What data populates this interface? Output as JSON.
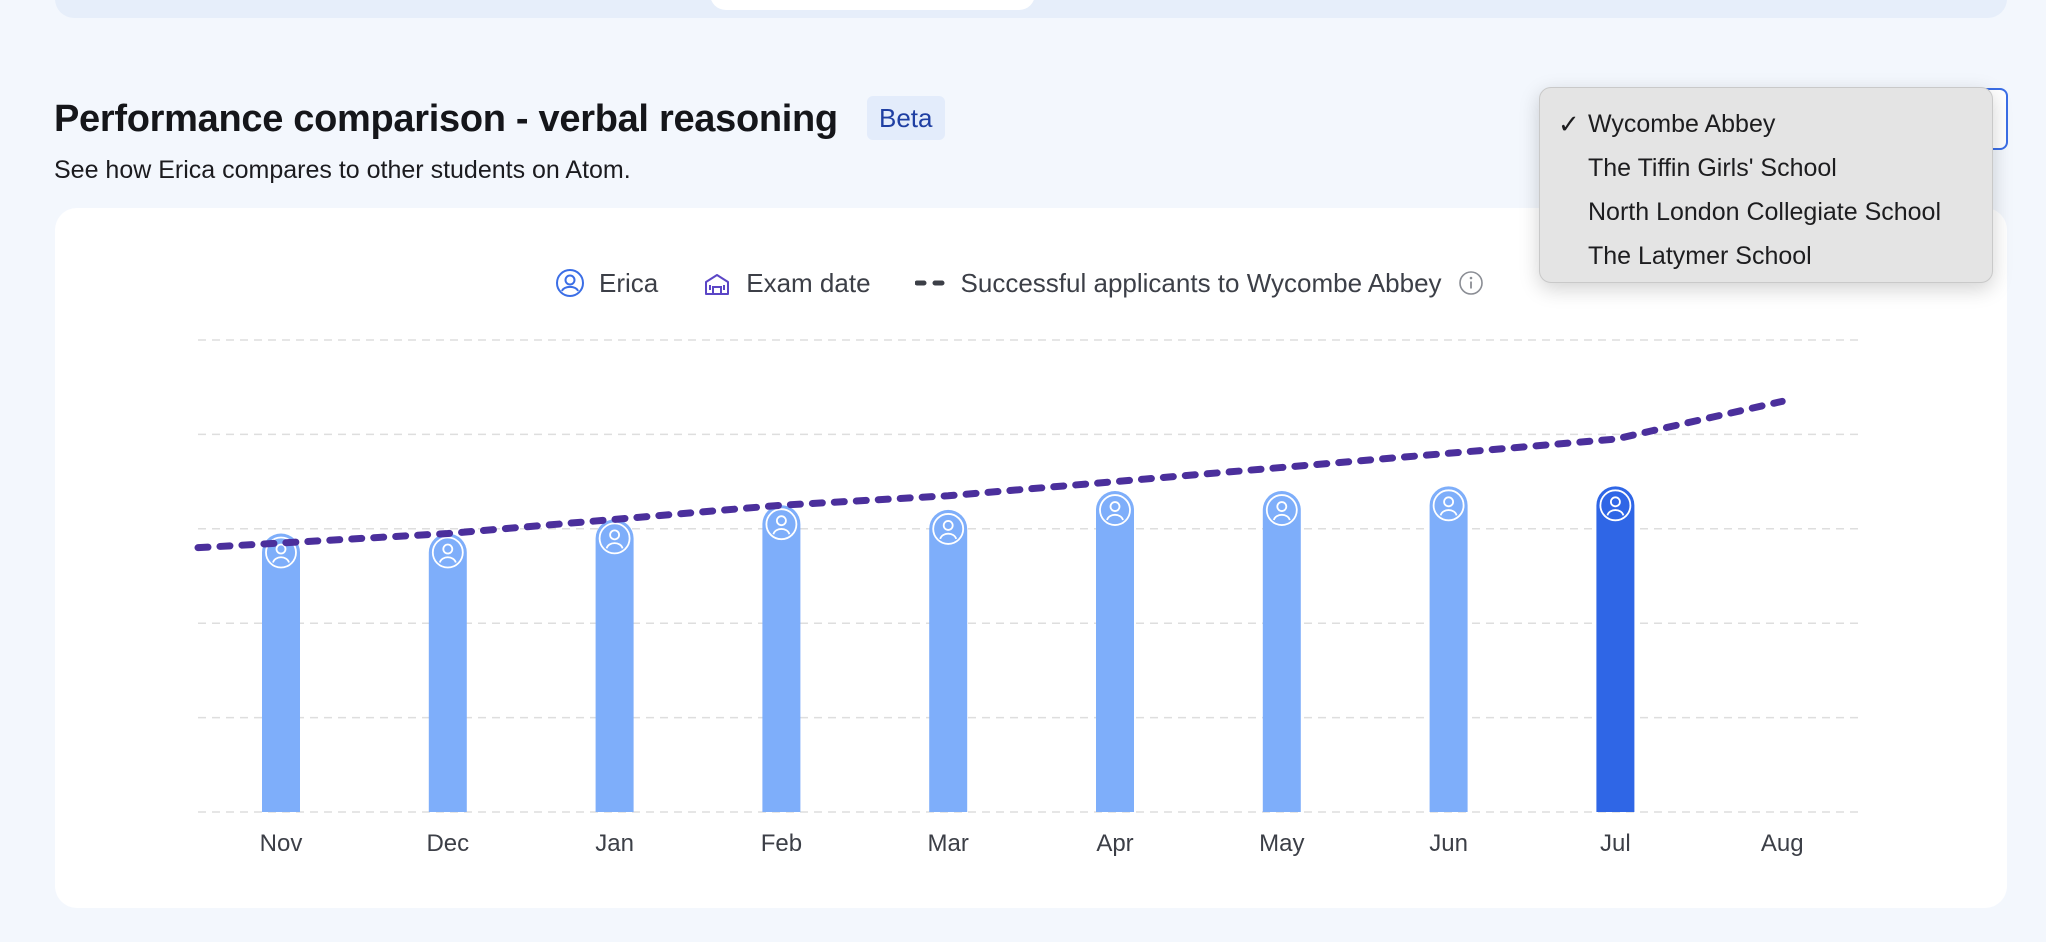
{
  "header": {
    "title": "Performance comparison - verbal reasoning",
    "badge": "Beta",
    "subtitle": "See how Erica compares to other students on Atom."
  },
  "legend": {
    "student": "Erica",
    "exam_date": "Exam date",
    "applicants": "Successful applicants to Wycombe Abbey"
  },
  "school_dropdown": {
    "selected": "Wycombe Abbey",
    "options": [
      "Wycombe Abbey",
      "The Tiffin Girls' School",
      "North London Collegiate School",
      "The Latymer School"
    ]
  },
  "colors": {
    "bar": "#7eaefa",
    "bar_current": "#2f66e6",
    "trend": "#4b2f9c",
    "grid": "#dedede"
  },
  "icons": {
    "student": "user-circle-icon",
    "exam": "school-building-icon",
    "applicants": "dashed-line-icon",
    "info": "info-icon",
    "check": "checkmark-icon"
  },
  "chart_data": {
    "type": "bar",
    "categories": [
      "Nov",
      "Dec",
      "Jan",
      "Feb",
      "Mar",
      "Apr",
      "May",
      "Jun",
      "Jul",
      "Aug"
    ],
    "series": [
      {
        "name": "Erica",
        "values": [
          59,
          59,
          62,
          65,
          64,
          68,
          68,
          69,
          69,
          null
        ]
      },
      {
        "name": "Successful applicants to Wycombe Abbey",
        "type": "line",
        "style": "dashed",
        "values": [
          56,
          59,
          62,
          65,
          67,
          70,
          73,
          76,
          79,
          87
        ]
      }
    ],
    "highlight_category": "Jul",
    "ylim": [
      0,
      100
    ],
    "grid": true,
    "legend_position": "top-center"
  }
}
